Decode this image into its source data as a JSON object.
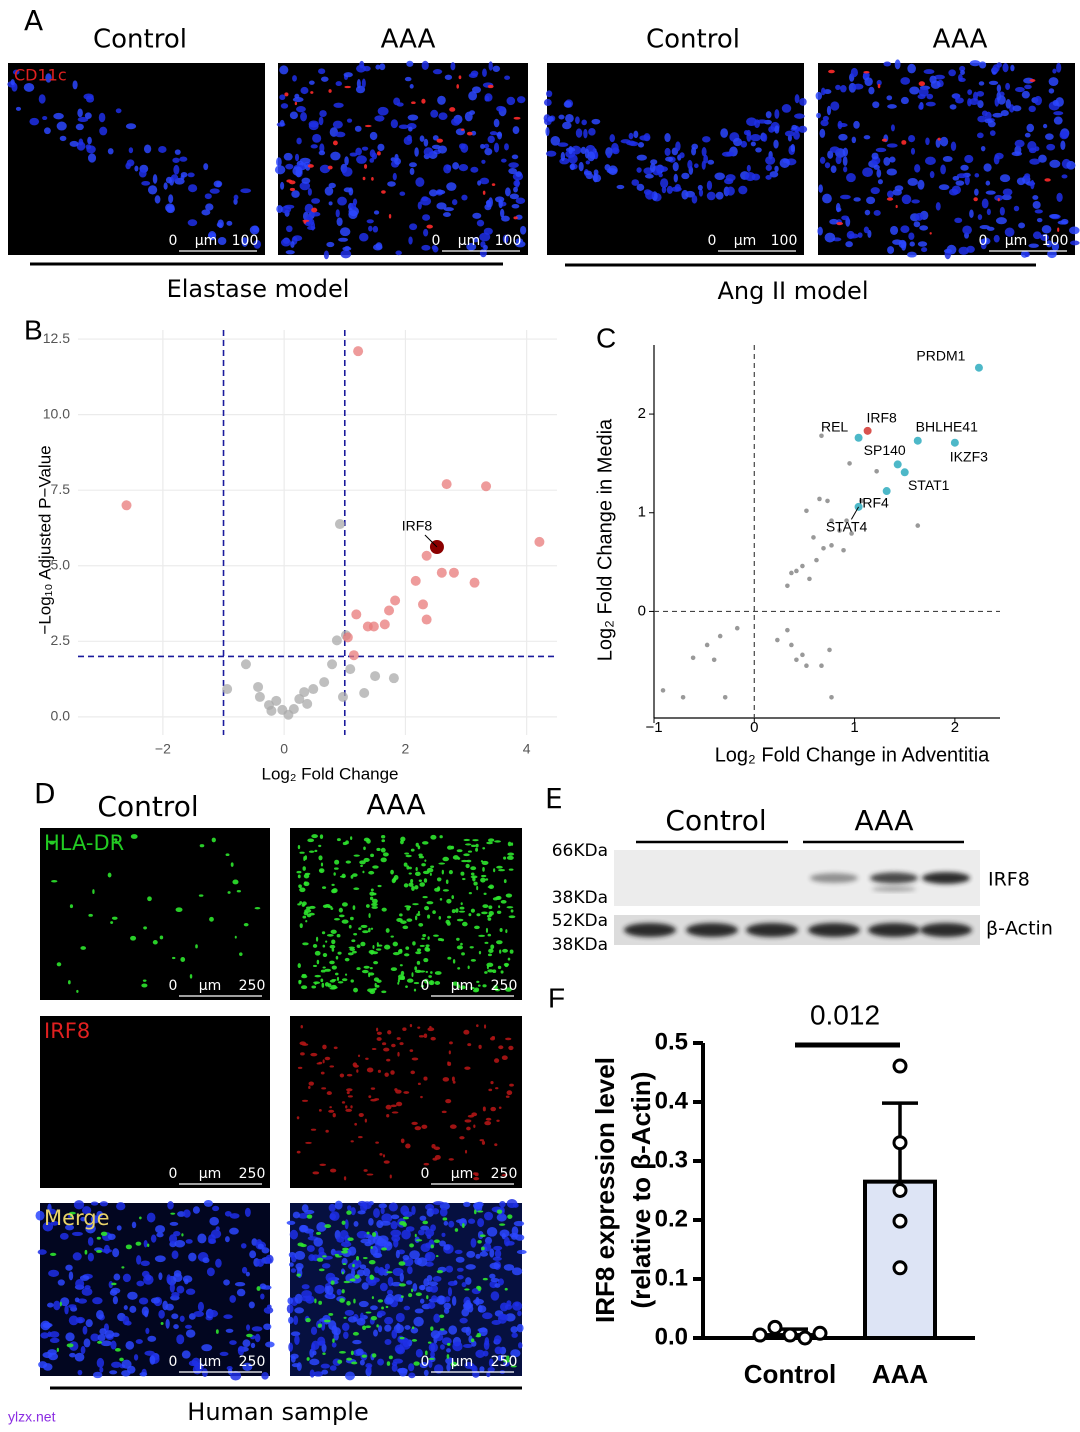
{
  "figure": {
    "panel_a": {
      "letter": "A",
      "columns": [
        "Control",
        "AAA",
        "Control",
        "AAA"
      ],
      "stain": "CD11c",
      "scale_bar": {
        "start": "0",
        "unit": "μm",
        "end": "100"
      },
      "groups": [
        "Elastase model",
        "Ang II model"
      ]
    },
    "panel_d": {
      "letter": "D",
      "columns": [
        "Control",
        "AAA"
      ],
      "rows": [
        "HLA-DR",
        "IRF8",
        "Merge"
      ],
      "scale_bar": {
        "start": "0",
        "unit": "μm",
        "end": "250"
      },
      "group": "Human sample"
    },
    "panel_e": {
      "letter": "E",
      "groups": [
        "Control",
        "AAA"
      ],
      "markers": [
        "66KDa",
        "38KDa",
        "52KDa",
        "38KDa"
      ],
      "bands": [
        "IRF8",
        "β-Actin"
      ]
    },
    "watermark": "ylzx.net"
  },
  "chart_data": [
    {
      "type": "scatter",
      "panel": "B",
      "x_label": "Log₂ Fold Change",
      "y_label": "−Log₁₀ Adjusted P−Value",
      "xlim": [
        -3.4,
        4.5
      ],
      "ylim": [
        -0.6,
        12.8
      ],
      "xticks": [
        {
          "value": -2,
          "label": "−2"
        },
        0,
        2,
        4
      ],
      "yticks": [
        {
          "value": 0,
          "label": "0.0"
        },
        2.5,
        {
          "value": 5,
          "label": "5.0"
        },
        7.5,
        {
          "value": 10,
          "label": "10.0"
        },
        12.5
      ],
      "grid": true,
      "thresholds": {
        "x": [
          -1,
          1
        ],
        "y": 2
      },
      "series": [
        {
          "color": "#a9a9a9",
          "x": [
            0.92,
            1.02,
            0.87,
            1.09,
            1.5,
            1.81,
            1.32,
            0.97,
            0.66,
            0.79,
            0.48,
            0.33,
            0.25,
            0.16,
            -0.03,
            -0.21,
            -0.25,
            -0.4,
            -0.43,
            -0.63,
            -0.94,
            -0.13,
            0.07,
            0.38
          ],
          "values": [
            6.38,
            2.7,
            2.53,
            1.58,
            1.35,
            1.28,
            0.79,
            0.66,
            1.15,
            1.74,
            0.92,
            0.82,
            0.59,
            0.26,
            0.23,
            0.2,
            0.39,
            0.66,
            0.99,
            1.74,
            0.92,
            0.53,
            0.07,
            0.43
          ]
        },
        {
          "color": "#e8797a",
          "x": [
            -2.6,
            1.22,
            2.68,
            3.33,
            4.21,
            2.35,
            2.6,
            2.8,
            3.14,
            2.17,
            2.29,
            2.35,
            1.83,
            1.73,
            1.19,
            1.38,
            1.48,
            1.66,
            1.15,
            1.05
          ],
          "values": [
            7.0,
            12.1,
            7.7,
            7.63,
            5.79,
            5.33,
            4.77,
            4.77,
            4.44,
            4.5,
            3.72,
            3.22,
            3.85,
            3.52,
            3.39,
            2.99,
            2.99,
            3.06,
            2.04,
            2.63
          ]
        },
        {
          "color": "#8b0000",
          "x": [
            2.52
          ],
          "values": [
            5.62
          ],
          "labels": [
            "IRF8"
          ]
        }
      ]
    },
    {
      "type": "scatter",
      "panel": "C",
      "x_label": "Log₂ Fold Change in Adventitia",
      "y_label": "Log₂ Fold Change in Media",
      "xlim": [
        -1,
        2.45
      ],
      "ylim": [
        -1.08,
        2.7
      ],
      "xticks": [
        {
          "value": -1,
          "label": "−1"
        },
        0,
        1,
        2
      ],
      "yticks": [
        0,
        1,
        2
      ],
      "reference_lines": {
        "x": 0,
        "y": 0
      },
      "series": [
        {
          "color": "#999999",
          "x": [
            0.67,
            0.95,
            0.65,
            0.73,
            0.52,
            0.77,
            0.92,
            0.85,
            0.59,
            0.69,
            0.62,
            0.48,
            0.37,
            0.42,
            0.33,
            0.55,
            0.77,
            0.89,
            0.97,
            1.63,
            1.07,
            1.22,
            -0.34,
            -0.17,
            -0.61,
            -0.4,
            -0.47,
            -0.91,
            -0.71,
            -0.29,
            0.23,
            0.37,
            0.42,
            0.52,
            0.67,
            0.75,
            0.77,
            0.33,
            0.48
          ],
          "values": [
            1.78,
            1.5,
            1.14,
            1.12,
            1.02,
            0.92,
            0.92,
            0.82,
            0.75,
            0.64,
            0.52,
            0.46,
            0.39,
            0.41,
            0.26,
            0.33,
            0.67,
            0.62,
            0.79,
            0.87,
            1.12,
            1.42,
            -0.25,
            -0.17,
            -0.47,
            -0.49,
            -0.34,
            -0.8,
            -0.87,
            -0.87,
            -0.29,
            -0.34,
            -0.49,
            -0.55,
            -0.55,
            -0.39,
            -0.87,
            -0.19,
            -0.44
          ]
        },
        {
          "color": "#4db8c8",
          "x": [
            2.24,
            1.63,
            2.0,
            1.04,
            1.43,
            1.5,
            1.32,
            1.04
          ],
          "values": [
            2.47,
            1.73,
            1.71,
            1.76,
            1.49,
            1.41,
            1.22,
            1.06
          ],
          "labels": [
            "PRDM1",
            "BHLHE41",
            "IKZF3",
            "REL",
            "SP140",
            "STAT1",
            "IRF4",
            "STAT4"
          ]
        },
        {
          "color": "#d9534f",
          "x": [
            1.13
          ],
          "values": [
            1.83
          ],
          "labels": [
            "IRF8"
          ]
        }
      ]
    },
    {
      "type": "bar",
      "panel": "F",
      "y_label": [
        "IRF8 expression level",
        "(relative to β-Actin)"
      ],
      "categories": [
        "Control",
        "AAA"
      ],
      "values": [
        0.005,
        0.265
      ],
      "errors": [
        0.01,
        0.133
      ],
      "points": [
        [
          0.005,
          0.018,
          0.005,
          0.0,
          0.008
        ],
        [
          0.461,
          0.331,
          0.25,
          0.198,
          0.119
        ]
      ],
      "colors": [
        "#ffffff",
        "#dde4f5"
      ],
      "ylim": [
        0,
        0.5
      ],
      "yticks": [
        {
          "value": 0,
          "label": "0.0"
        },
        0.1,
        0.2,
        0.3,
        0.4,
        0.5
      ],
      "p_value": 0.012
    }
  ]
}
